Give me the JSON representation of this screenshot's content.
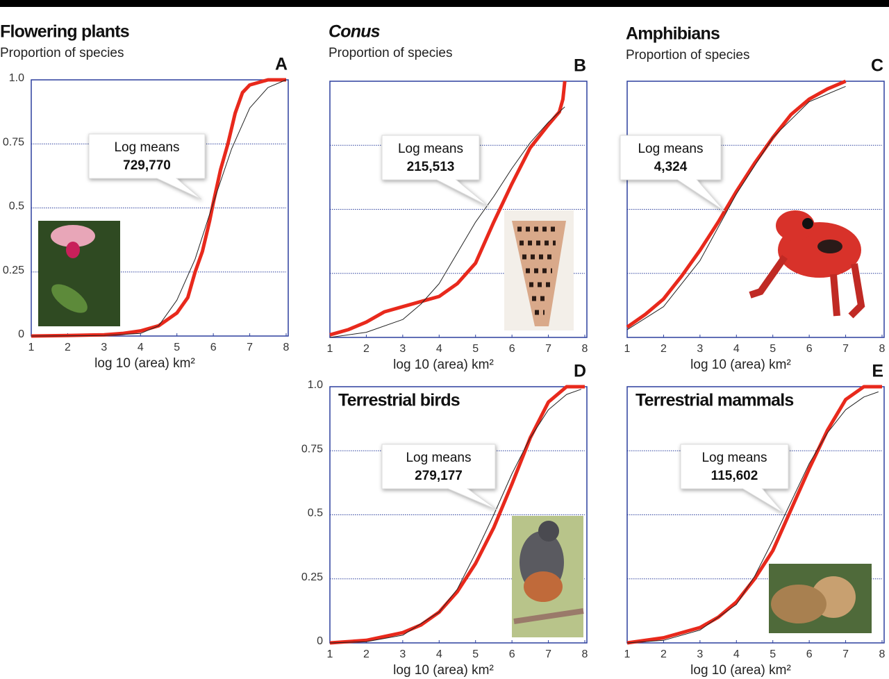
{
  "chart_data": [
    {
      "type": "line",
      "panel": "A",
      "title": "Flowering plants",
      "title_style": "normal",
      "title_position": "above",
      "ylabel": "Proportion of species",
      "xlabel": "log 10 (area) km²",
      "xlim": [
        1,
        8
      ],
      "ylim": [
        0,
        1
      ],
      "xticks": [
        1,
        2,
        3,
        4,
        5,
        6,
        7,
        8
      ],
      "yticks": [
        0,
        0.25,
        0.5,
        0.75,
        {
          "value": 1,
          "label": "1.0"
        }
      ],
      "ytick_labels": true,
      "grid": true,
      "annotation": {
        "label": "Log means",
        "value": "729,770"
      },
      "series": [
        {
          "color": "#e8291c",
          "width": 5,
          "x": [
            1,
            2,
            3,
            3.5,
            4,
            4.5,
            5,
            5.3,
            5.5,
            5.7,
            5.9,
            6,
            6.2,
            6.4,
            6.6,
            6.8,
            7,
            7.5,
            8
          ],
          "values": [
            0,
            0.002,
            0.005,
            0.01,
            0.02,
            0.04,
            0.09,
            0.15,
            0.25,
            0.33,
            0.45,
            0.52,
            0.65,
            0.75,
            0.87,
            0.95,
            0.98,
            1,
            1
          ]
        },
        {
          "color": "#222222",
          "width": 1,
          "x": [
            1,
            3,
            4,
            4.5,
            5,
            5.5,
            6,
            6.5,
            7,
            7.5,
            8
          ],
          "values": [
            0,
            0.002,
            0.01,
            0.04,
            0.14,
            0.3,
            0.52,
            0.73,
            0.89,
            0.97,
            1
          ]
        }
      ]
    },
    {
      "type": "line",
      "panel": "B",
      "title": "Conus",
      "title_style": "italic",
      "title_position": "above",
      "ylabel": "Proportion of species",
      "xlabel": "log 10 (area) km²",
      "xlim": [
        1,
        8
      ],
      "ylim": [
        0,
        1
      ],
      "xticks": [
        1,
        2,
        3,
        4,
        5,
        6,
        7,
        8
      ],
      "yticks": [
        0,
        0.25,
        0.5,
        0.75,
        1
      ],
      "ytick_labels": false,
      "grid": true,
      "annotation": {
        "label": "Log means",
        "value": "215,513"
      },
      "series": [
        {
          "color": "#e8291c",
          "width": 5,
          "x": [
            1,
            1.5,
            2,
            2.5,
            3,
            3.5,
            4,
            4.5,
            5,
            5.5,
            6,
            6.5,
            7,
            7.3,
            7.4,
            7.45
          ],
          "values": [
            0.01,
            0.03,
            0.06,
            0.1,
            0.12,
            0.14,
            0.16,
            0.21,
            0.29,
            0.45,
            0.6,
            0.74,
            0.83,
            0.88,
            0.93,
            1
          ]
        },
        {
          "color": "#222222",
          "width": 1,
          "x": [
            1,
            2,
            3,
            3.5,
            4,
            4.5,
            5,
            5.5,
            6,
            6.5,
            7,
            7.45
          ],
          "values": [
            0,
            0.02,
            0.07,
            0.13,
            0.21,
            0.33,
            0.45,
            0.55,
            0.66,
            0.76,
            0.84,
            0.9
          ]
        }
      ]
    },
    {
      "type": "line",
      "panel": "C",
      "title": "Amphibians",
      "title_style": "normal",
      "title_position": "above",
      "ylabel": "Proportion of species",
      "xlabel": "log 10 (area) km²",
      "xlim": [
        1,
        8
      ],
      "ylim": [
        0,
        1
      ],
      "xticks": [
        1,
        2,
        3,
        4,
        5,
        6,
        7,
        8
      ],
      "yticks": [
        0,
        0.25,
        0.5,
        0.75,
        1
      ],
      "ytick_labels": false,
      "grid": true,
      "annotation": {
        "label": "Log means",
        "value": "4,324"
      },
      "series": [
        {
          "color": "#e8291c",
          "width": 5,
          "x": [
            1,
            1.5,
            2,
            2.5,
            3,
            3.5,
            4,
            4.5,
            5,
            5.5,
            6,
            6.5,
            7
          ],
          "values": [
            0.04,
            0.09,
            0.15,
            0.24,
            0.34,
            0.45,
            0.57,
            0.68,
            0.78,
            0.87,
            0.93,
            0.97,
            1
          ]
        },
        {
          "color": "#222222",
          "width": 1,
          "x": [
            1,
            2,
            3,
            3.5,
            4,
            5,
            6,
            7
          ],
          "values": [
            0.03,
            0.12,
            0.3,
            0.43,
            0.56,
            0.78,
            0.92,
            0.98
          ]
        }
      ]
    },
    {
      "type": "line",
      "panel": "D",
      "title": "Terrestrial birds",
      "title_style": "normal",
      "title_position": "inside",
      "xlabel": "log 10 (area) km²",
      "xlim": [
        1,
        8
      ],
      "ylim": [
        0,
        1
      ],
      "xticks": [
        1,
        2,
        3,
        4,
        5,
        6,
        7,
        8
      ],
      "yticks": [
        0,
        0.25,
        0.5,
        0.75,
        {
          "value": 1,
          "label": "1.0"
        }
      ],
      "ytick_labels": true,
      "grid": true,
      "annotation": {
        "label": "Log means",
        "value": "279,177"
      },
      "series": [
        {
          "color": "#e8291c",
          "width": 5,
          "x": [
            1,
            2,
            3,
            3.5,
            4,
            4.5,
            5,
            5.5,
            6,
            6.5,
            7,
            7.5,
            8
          ],
          "values": [
            0,
            0.01,
            0.04,
            0.07,
            0.12,
            0.2,
            0.31,
            0.45,
            0.62,
            0.8,
            0.94,
            1,
            1
          ]
        },
        {
          "color": "#222222",
          "width": 1,
          "x": [
            1,
            2,
            3,
            4,
            4.5,
            5,
            5.5,
            6,
            6.5,
            7,
            7.5,
            7.9
          ],
          "values": [
            0,
            0.005,
            0.03,
            0.12,
            0.21,
            0.35,
            0.5,
            0.66,
            0.8,
            0.91,
            0.97,
            0.99
          ]
        }
      ]
    },
    {
      "type": "line",
      "panel": "E",
      "title": "Terrestrial mammals",
      "title_style": "normal",
      "title_position": "inside",
      "xlabel": "log 10 (area) km²",
      "xlim": [
        1,
        8
      ],
      "ylim": [
        0,
        1
      ],
      "xticks": [
        1,
        2,
        3,
        4,
        5,
        6,
        7,
        8
      ],
      "yticks": [
        0,
        0.25,
        0.5,
        0.75,
        1
      ],
      "ytick_labels": false,
      "grid": true,
      "annotation": {
        "label": "Log means",
        "value": "115,602"
      },
      "series": [
        {
          "color": "#e8291c",
          "width": 5,
          "x": [
            1,
            2,
            3,
            3.5,
            4,
            4.5,
            5,
            5.5,
            6,
            6.5,
            7,
            7.5,
            8
          ],
          "values": [
            0,
            0.02,
            0.06,
            0.1,
            0.16,
            0.25,
            0.36,
            0.52,
            0.68,
            0.83,
            0.95,
            1,
            1
          ]
        },
        {
          "color": "#222222",
          "width": 1,
          "x": [
            1,
            2,
            3,
            4,
            4.5,
            5,
            5.5,
            6,
            6.5,
            7,
            7.5,
            7.9
          ],
          "values": [
            0,
            0.01,
            0.05,
            0.15,
            0.26,
            0.4,
            0.55,
            0.7,
            0.82,
            0.91,
            0.96,
            0.98
          ]
        }
      ]
    }
  ]
}
